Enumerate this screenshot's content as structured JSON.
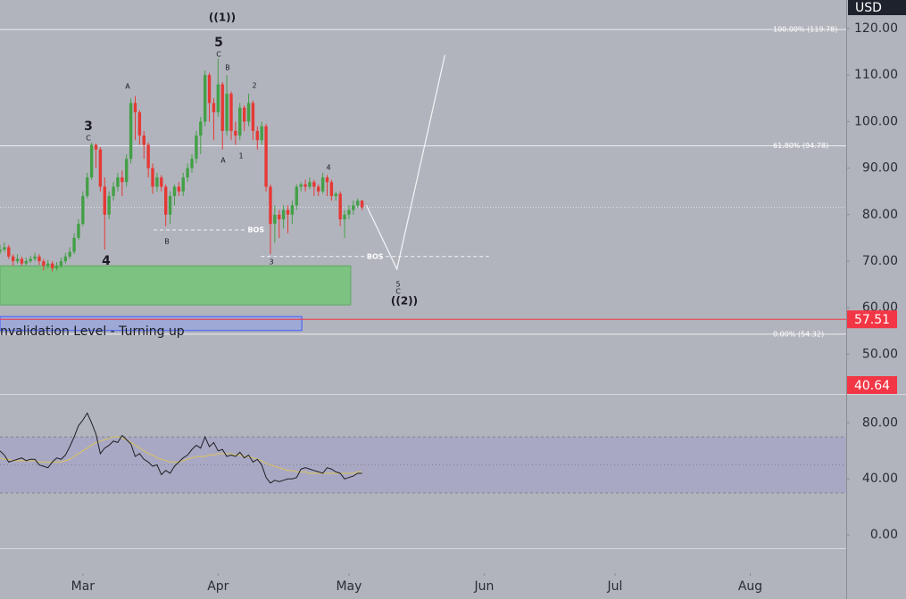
{
  "chart_data": {
    "type": "candlestick",
    "currency": "USD",
    "xlim": [
      0,
      194
    ],
    "xticks": [
      {
        "value": 19,
        "label": "Mar"
      },
      {
        "value": 50,
        "label": "Apr"
      },
      {
        "value": 80,
        "label": "May"
      },
      {
        "value": 111,
        "label": "Jun"
      },
      {
        "value": 141,
        "label": "Jul"
      },
      {
        "value": 172,
        "label": "Aug"
      }
    ],
    "ylim": [
      41.46,
      126.13
    ],
    "yticks": [
      {
        "value": 120,
        "label": "120.00"
      },
      {
        "value": 110,
        "label": "110.00"
      },
      {
        "value": 100,
        "label": "100.00"
      },
      {
        "value": 90,
        "label": "90.00"
      },
      {
        "value": 80,
        "label": "80.00"
      },
      {
        "value": 70,
        "label": "70.00"
      },
      {
        "value": 60,
        "label": "60.00"
      },
      {
        "value": 50,
        "label": "50.00"
      }
    ],
    "up_color": "#43a047",
    "down_color": "#e53935",
    "open": [
      72,
      72.5,
      73,
      71,
      70,
      70.5,
      69.5,
      70,
      70.5,
      71,
      70,
      69,
      69.5,
      68.5,
      69,
      70,
      71,
      72,
      75,
      78,
      84,
      88,
      95,
      94,
      86,
      80,
      84,
      86,
      88,
      87,
      92,
      104,
      102,
      97,
      95,
      90,
      86,
      88,
      86,
      80,
      84,
      86,
      85,
      88,
      90,
      92,
      97,
      100,
      110,
      104,
      102,
      108,
      98,
      106,
      98,
      97,
      103,
      100,
      104,
      98,
      96,
      99,
      86,
      78,
      80,
      79,
      81,
      80,
      82,
      86,
      86.5,
      86,
      87,
      86,
      85,
      88,
      87,
      84,
      84.5,
      79,
      80,
      81,
      82,
      83
    ],
    "high": [
      73.5,
      74,
      73.5,
      71.5,
      71.5,
      71,
      70.8,
      71.2,
      71.8,
      71.5,
      70.5,
      70.3,
      70,
      69.8,
      70.8,
      71.8,
      73,
      76,
      79,
      85,
      89,
      95.5,
      95.3,
      94.5,
      88,
      85,
      87,
      89,
      89.5,
      93,
      105,
      105.5,
      102.5,
      98,
      95.5,
      91,
      89,
      88.5,
      86.5,
      85,
      86.5,
      87,
      89,
      91,
      93,
      98,
      101,
      111,
      110.5,
      105,
      113.5,
      108.5,
      110,
      106.5,
      100,
      104,
      103.5,
      106,
      104.5,
      99,
      100,
      99.5,
      86.5,
      82,
      81,
      82,
      82,
      83,
      86.5,
      87,
      87.5,
      88,
      87.5,
      86.5,
      89,
      88.5,
      87.5,
      85,
      85,
      81,
      82,
      83,
      83.5,
      83.2
    ],
    "low": [
      71.5,
      72,
      70.5,
      69,
      69.5,
      69,
      69,
      69.6,
      70,
      69.2,
      68,
      68.4,
      67.8,
      68,
      68.5,
      69.5,
      70.5,
      71.5,
      74.5,
      77.5,
      83.5,
      87.5,
      90,
      85,
      72.5,
      79,
      83,
      85,
      84,
      86,
      91,
      96,
      95,
      92,
      88,
      84.5,
      85,
      85,
      77.5,
      78,
      82,
      84,
      84,
      87,
      89,
      91,
      93,
      99,
      100,
      96,
      101,
      94,
      97,
      96,
      95,
      96,
      98,
      99,
      96,
      94,
      95,
      85,
      71.5,
      74,
      75,
      77,
      76,
      78,
      81,
      85,
      85,
      85.5,
      84,
      84,
      84.5,
      84,
      83,
      83,
      77.5,
      75,
      79,
      80,
      81.5,
      81
    ],
    "close": [
      72.5,
      73,
      71,
      70,
      70.5,
      69.5,
      70,
      70.5,
      71,
      70,
      69,
      69.5,
      68.5,
      69,
      70,
      71,
      72,
      75,
      78,
      84,
      88,
      95,
      94,
      86,
      80,
      84,
      86,
      88,
      87,
      92,
      104,
      102,
      97,
      95,
      90,
      86,
      88,
      86,
      80,
      84,
      86,
      85,
      88,
      90,
      92,
      97,
      100,
      110,
      104,
      102,
      108,
      98,
      106,
      98,
      97,
      103,
      100,
      104,
      98,
      96,
      99,
      86,
      78,
      80,
      79,
      81,
      80,
      82,
      86,
      86.5,
      86,
      87,
      86,
      85,
      88,
      87,
      84,
      84.5,
      79,
      80,
      81,
      82,
      83,
      81.6
    ],
    "fib_levels": [
      {
        "value": 119.78,
        "label": "100.00% (119.78)"
      },
      {
        "value": 94.78,
        "label": "61.80% (94.78)"
      },
      {
        "value": 54.32,
        "label": "0.00% (54.32)"
      }
    ],
    "price_badges": [
      57.51,
      40.64
    ],
    "badge_color": "#f23645",
    "zones": [
      {
        "ylim": [
          60.6,
          69.0
        ],
        "xlim": [
          0,
          80.4
        ],
        "color": "#7ec281",
        "border": "#5fa862"
      },
      {
        "ylim": [
          55.1,
          58.1
        ],
        "xlim": [
          0,
          69.2
        ],
        "color": "#9fa9d6",
        "border": "#3d5afe"
      }
    ],
    "bos": [
      {
        "label": "BOS",
        "value": 76.7,
        "xlim": [
          35.2,
          59.3
        ]
      },
      {
        "label": "BOS",
        "value": 71.0,
        "xlim": [
          59.8,
          112.1
        ]
      }
    ],
    "projection": {
      "x": [
        84,
        91,
        102
      ],
      "values": [
        82,
        68.3,
        114.3
      ]
    },
    "wave_labels": [
      "((1))",
      "5",
      "C",
      "B",
      "A",
      "2",
      "3",
      "C",
      "A",
      "1",
      "4",
      "B",
      "3",
      "4",
      "5",
      "C",
      "((2))",
      "nvalidation Level - Turning up"
    ],
    "rsi": {
      "ylim": [
        -9.5,
        100
      ],
      "yticks": [
        {
          "value": 80,
          "label": "80.00"
        },
        {
          "value": 40,
          "label": "40.00"
        },
        {
          "value": 0,
          "label": "0.00"
        }
      ],
      "bands": [
        70,
        50,
        30
      ],
      "color": "#1e1e24",
      "ma_color": "#d9c45a",
      "values": [
        60,
        57,
        52,
        53,
        54,
        55,
        53,
        54,
        54,
        50,
        49,
        48,
        52,
        55,
        54,
        57,
        63,
        70,
        78,
        82,
        87,
        80,
        72,
        58,
        62,
        64,
        67,
        66,
        71,
        68,
        65,
        56,
        58,
        54,
        52,
        49,
        50,
        43,
        46,
        44,
        49,
        52,
        55,
        57,
        61,
        64,
        62,
        70,
        63,
        66,
        60,
        61,
        56,
        57,
        56,
        59,
        55,
        57,
        52,
        54,
        50,
        41,
        37,
        39,
        38,
        39,
        40,
        40,
        41,
        47,
        48,
        47,
        46,
        45,
        44,
        48,
        47,
        45,
        44,
        40,
        41,
        42,
        44,
        44
      ],
      "ma": [
        55,
        54,
        54,
        53,
        53,
        53,
        53,
        53,
        53,
        52,
        52,
        52,
        52,
        52,
        52,
        53,
        54,
        56,
        58,
        60,
        62,
        64,
        66,
        67,
        68,
        69,
        70,
        70,
        69,
        68,
        66,
        64,
        62,
        60,
        58,
        57,
        55,
        54,
        53,
        52,
        52,
        52,
        53,
        54,
        55,
        56,
        56,
        56,
        57,
        57,
        58,
        58,
        58,
        58,
        57,
        57,
        56,
        56,
        55,
        54,
        53,
        51,
        50,
        49,
        48,
        47,
        46,
        46,
        45,
        45,
        45,
        44,
        44,
        44,
        44,
        44,
        44,
        44,
        44,
        44,
        44,
        44,
        45,
        45
      ]
    }
  }
}
